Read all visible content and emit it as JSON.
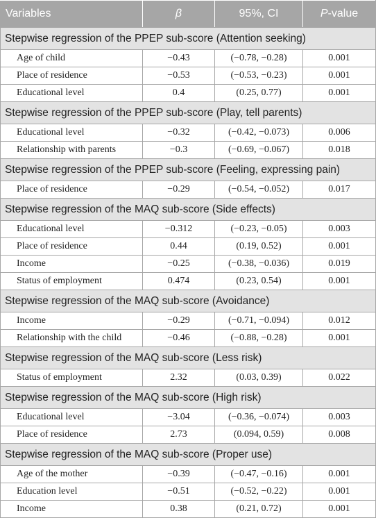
{
  "header": {
    "variables": "Variables",
    "beta": "β",
    "ci": "95%, CI",
    "p_prefix": "P",
    "p_suffix": "-value"
  },
  "sections": [
    {
      "title": "Stepwise regression of the PPEP sub-score (Attention seeking)",
      "rows": [
        {
          "variable": "Age of child",
          "beta": "−0.43",
          "ci": "(−0.78, −0.28)",
          "p": "0.001"
        },
        {
          "variable": "Place of residence",
          "beta": "−0.53",
          "ci": "(−0.53, −0.23)",
          "p": "0.001"
        },
        {
          "variable": "Educational level",
          "beta": "0.4",
          "ci": "(0.25, 0.77)",
          "p": "0.001"
        }
      ]
    },
    {
      "title": "Stepwise regression of the PPEP sub-score (Play, tell parents)",
      "rows": [
        {
          "variable": "Educational level",
          "beta": "−0.32",
          "ci": "(−0.42, −0.073)",
          "p": "0.006"
        },
        {
          "variable": "Relationship with parents",
          "beta": "−0.3",
          "ci": "(−0.69, −0.067)",
          "p": "0.018"
        }
      ]
    },
    {
      "title": "Stepwise regression of the PPEP sub-score (Feeling, expressing pain)",
      "rows": [
        {
          "variable": "Place of residence",
          "beta": "−0.29",
          "ci": "(−0.54, −0.052)",
          "p": "0.017"
        }
      ]
    },
    {
      "title": "Stepwise regression of the MAQ sub-score (Side effects)",
      "rows": [
        {
          "variable": "Educational level",
          "beta": "−0.312",
          "ci": "(−0.23, −0.05)",
          "p": "0.003"
        },
        {
          "variable": "Place of residence",
          "beta": "0.44",
          "ci": "(0.19, 0.52)",
          "p": "0.001"
        },
        {
          "variable": "Income",
          "beta": "−0.25",
          "ci": "(−0.38, −0.036)",
          "p": "0.019"
        },
        {
          "variable": "Status of employment",
          "beta": "0.474",
          "ci": "(0.23, 0.54)",
          "p": "0.001"
        }
      ]
    },
    {
      "title": "Stepwise regression of the MAQ sub-score (Avoidance)",
      "rows": [
        {
          "variable": "Income",
          "beta": "−0.29",
          "ci": "(−0.71, −0.094)",
          "p": "0.012"
        },
        {
          "variable": "Relationship with the child",
          "beta": "−0.46",
          "ci": "(−0.88, −0.28)",
          "p": "0.001"
        }
      ]
    },
    {
      "title": "Stepwise regression of the MAQ sub-score (Less risk)",
      "rows": [
        {
          "variable": "Status of employment",
          "beta": "2.32",
          "ci": "(0.03, 0.39)",
          "p": "0.022"
        }
      ]
    },
    {
      "title": "Stepwise regression of the MAQ sub-score (High risk)",
      "rows": [
        {
          "variable": "Educational level",
          "beta": "−3.04",
          "ci": "(−0.36, −0.074)",
          "p": "0.003"
        },
        {
          "variable": "Place of residence",
          "beta": "2.73",
          "ci": "(0.094, 0.59)",
          "p": "0.008"
        }
      ]
    },
    {
      "title": "Stepwise regression of the MAQ sub-score (Proper use)",
      "rows": [
        {
          "variable": "Age of the mother",
          "beta": "−0.39",
          "ci": "(−0.47, −0.16)",
          "p": "0.001"
        },
        {
          "variable": "Education level",
          "beta": "−0.51",
          "ci": "(−0.52, −0.22)",
          "p": "0.001"
        },
        {
          "variable": "Income",
          "beta": "0.38",
          "ci": "(0.21, 0.72)",
          "p": "0.001"
        }
      ]
    }
  ]
}
